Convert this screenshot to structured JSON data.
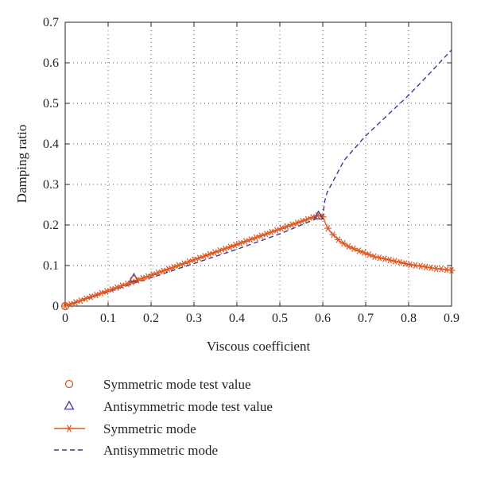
{
  "chart_data": {
    "type": "line",
    "xlabel": "Viscous coefficient",
    "ylabel": "Damping ratio",
    "xlim": [
      0,
      0.9
    ],
    "ylim": [
      0,
      0.7
    ],
    "xticks": [
      "0",
      "0.1",
      "0.2",
      "0.3",
      "0.4",
      "0.5",
      "0.6",
      "0.7",
      "0.8",
      "0.9"
    ],
    "yticks": [
      "0",
      "0.1",
      "0.2",
      "0.3",
      "0.4",
      "0.5",
      "0.6",
      "0.7"
    ],
    "grid": true,
    "legend_position": "bottom",
    "series": [
      {
        "name": "Symmetric mode test value",
        "style": "marker-circle",
        "color": "#e0561f",
        "x": [
          0.0,
          0.16
        ],
        "y": [
          0.0,
          0.065
        ]
      },
      {
        "name": "Antisymmetric mode test value",
        "style": "marker-triangle",
        "color": "#3a3a9a",
        "x": [
          0.16,
          0.59
        ],
        "y": [
          0.068,
          0.222
        ]
      },
      {
        "name": "Symmetric mode",
        "style": "line-asterisk",
        "color": "#e0561f",
        "x": [
          0.0,
          0.1,
          0.2,
          0.3,
          0.4,
          0.5,
          0.59,
          0.6,
          0.61,
          0.62,
          0.64,
          0.66,
          0.68,
          0.7,
          0.72,
          0.75,
          0.78,
          0.8,
          0.83,
          0.86,
          0.88,
          0.9
        ],
        "y": [
          0.0,
          0.038,
          0.076,
          0.114,
          0.152,
          0.19,
          0.224,
          0.22,
          0.195,
          0.18,
          0.16,
          0.147,
          0.138,
          0.13,
          0.122,
          0.115,
          0.108,
          0.103,
          0.098,
          0.093,
          0.091,
          0.088
        ]
      },
      {
        "name": "Antisymmetric mode",
        "style": "dashed",
        "color": "#3a3a9a",
        "x": [
          0.0,
          0.1,
          0.2,
          0.3,
          0.4,
          0.5,
          0.6,
          0.605,
          0.61,
          0.62,
          0.63,
          0.65,
          0.7,
          0.75,
          0.8,
          0.85,
          0.9
        ],
        "y": [
          0.0,
          0.035,
          0.07,
          0.105,
          0.14,
          0.178,
          0.222,
          0.26,
          0.28,
          0.3,
          0.32,
          0.36,
          0.42,
          0.47,
          0.52,
          0.575,
          0.632
        ]
      }
    ]
  }
}
